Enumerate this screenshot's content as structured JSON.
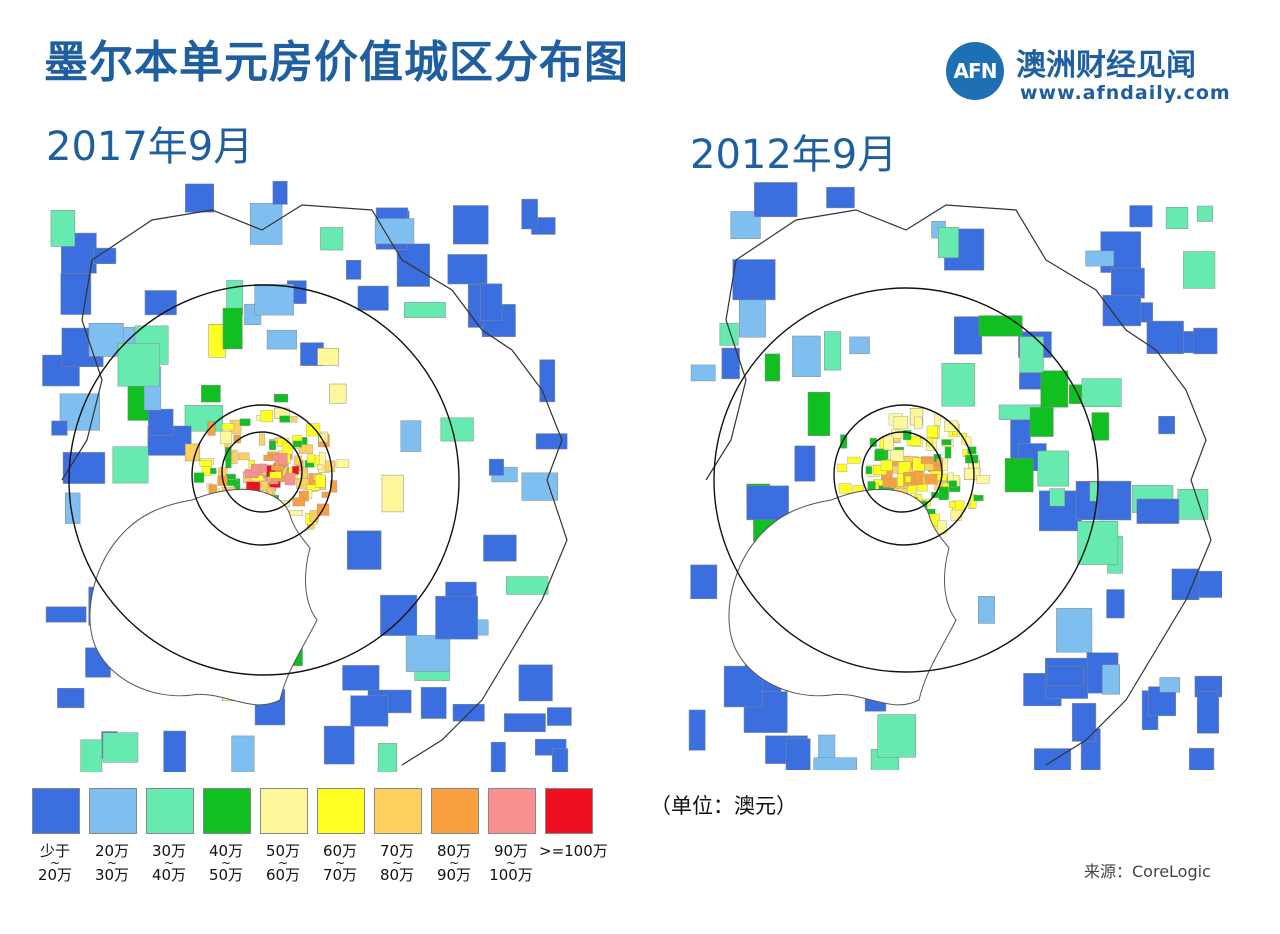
{
  "title": "墨尔本单元房价值城区分布图",
  "brand": {
    "logo_mark": "AFN",
    "name": "澳洲财经见闻",
    "url": "www.afndaily.com"
  },
  "maps": [
    {
      "date": "2017年9月"
    },
    {
      "date": "2012年9月"
    }
  ],
  "legend": {
    "unit": "（单位：澳元）",
    "items": [
      {
        "label_top": "少于",
        "label_bottom": "20万",
        "color": "#3b6fe0"
      },
      {
        "label_top": "20万",
        "label_bottom": "30万",
        "color": "#7fbff0"
      },
      {
        "label_top": "30万",
        "label_bottom": "40万",
        "color": "#66eab0"
      },
      {
        "label_top": "40万",
        "label_bottom": "50万",
        "color": "#10c020"
      },
      {
        "label_top": "50万",
        "label_bottom": "60万",
        "color": "#fff89a"
      },
      {
        "label_top": "60万",
        "label_bottom": "70万",
        "color": "#ffff22"
      },
      {
        "label_top": "70万",
        "label_bottom": "80万",
        "color": "#fdd060"
      },
      {
        "label_top": "80万",
        "label_bottom": "90万",
        "color": "#f8a040"
      },
      {
        "label_top": "90万",
        "label_bottom": "100万",
        "color": "#f89090"
      },
      {
        "label_top": ">=100万",
        "label_bottom": "",
        "color": "#ee1020"
      }
    ]
  },
  "source": "来源：CoreLogic"
}
